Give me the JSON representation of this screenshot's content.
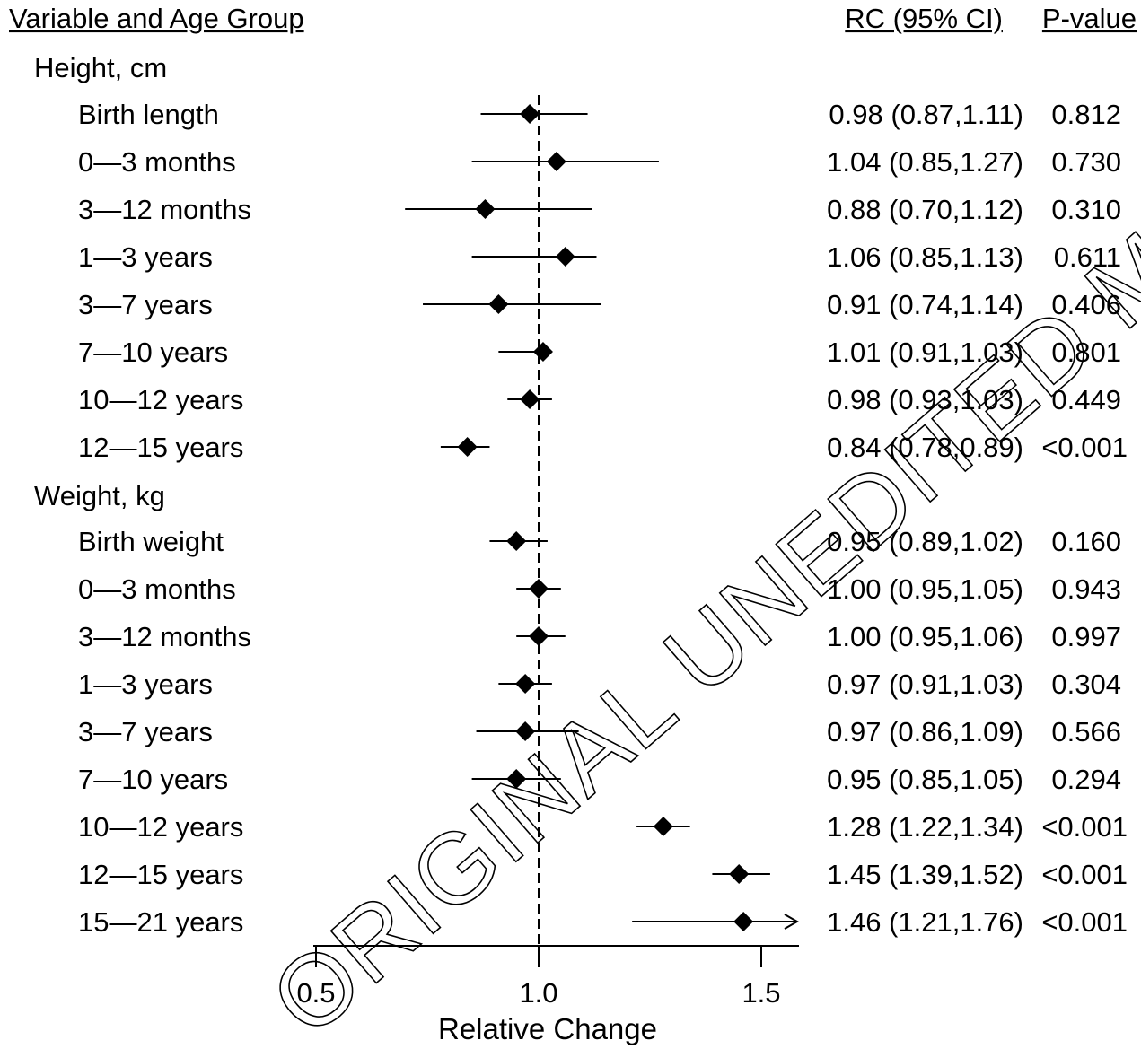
{
  "chart_data": {
    "type": "forest",
    "headers": {
      "variable": "Variable and Age Group",
      "estimate": "RC (95% CI)",
      "pvalue": "P-value"
    },
    "xlabel": "Relative Change",
    "xlim": [
      0.5,
      1.5
    ],
    "xticks": [
      "0.5",
      "1.0",
      "1.5"
    ],
    "reference_line": 1.0,
    "groups": [
      {
        "name": "Height, cm",
        "rows": [
          {
            "label": "Birth length",
            "rc": 0.98,
            "lo": 0.87,
            "hi": 1.11,
            "est_text": "0.98 (0.87,1.11)",
            "p": "0.812"
          },
          {
            "label": "0—3 months",
            "rc": 1.04,
            "lo": 0.85,
            "hi": 1.27,
            "est_text": "1.04 (0.85,1.27)",
            "p": "0.730"
          },
          {
            "label": "3—12 months",
            "rc": 0.88,
            "lo": 0.7,
            "hi": 1.12,
            "est_text": "0.88 (0.70,1.12)",
            "p": "0.310"
          },
          {
            "label": "1—3 years",
            "rc": 1.06,
            "lo": 0.85,
            "hi": 1.13,
            "est_text": "1.06 (0.85,1.13)",
            "p": "0.611"
          },
          {
            "label": "3—7 years",
            "rc": 0.91,
            "lo": 0.74,
            "hi": 1.14,
            "est_text": "0.91 (0.74,1.14)",
            "p": "0.406"
          },
          {
            "label": "7—10 years",
            "rc": 1.01,
            "lo": 0.91,
            "hi": 1.03,
            "est_text": "1.01 (0.91,1.03)",
            "p": "0.801"
          },
          {
            "label": "10—12 years",
            "rc": 0.98,
            "lo": 0.93,
            "hi": 1.03,
            "est_text": "0.98 (0.93,1.03)",
            "p": "0.449"
          },
          {
            "label": "12—15 years",
            "rc": 0.84,
            "lo": 0.78,
            "hi": 0.89,
            "est_text": "0.84 (0.78,0.89)",
            "p": "<0.001"
          }
        ]
      },
      {
        "name": "Weight, kg",
        "rows": [
          {
            "label": "Birth weight",
            "rc": 0.95,
            "lo": 0.89,
            "hi": 1.02,
            "est_text": "0.95 (0.89,1.02)",
            "p": "0.160"
          },
          {
            "label": "0—3 months",
            "rc": 1.0,
            "lo": 0.95,
            "hi": 1.05,
            "est_text": "1.00 (0.95,1.05)",
            "p": "0.943"
          },
          {
            "label": "3—12 months",
            "rc": 1.0,
            "lo": 0.95,
            "hi": 1.06,
            "est_text": "1.00 (0.95,1.06)",
            "p": "0.997"
          },
          {
            "label": "1—3 years",
            "rc": 0.97,
            "lo": 0.91,
            "hi": 1.03,
            "est_text": "0.97 (0.91,1.03)",
            "p": "0.304"
          },
          {
            "label": "3—7 years",
            "rc": 0.97,
            "lo": 0.86,
            "hi": 1.09,
            "est_text": "0.97 (0.86,1.09)",
            "p": "0.566"
          },
          {
            "label": "7—10 years",
            "rc": 0.95,
            "lo": 0.85,
            "hi": 1.05,
            "est_text": "0.95 (0.85,1.05)",
            "p": "0.294"
          },
          {
            "label": "10—12 years",
            "rc": 1.28,
            "lo": 1.22,
            "hi": 1.34,
            "est_text": "1.28 (1.22,1.34)",
            "p": "<0.001"
          },
          {
            "label": "12—15 years",
            "rc": 1.45,
            "lo": 1.39,
            "hi": 1.52,
            "est_text": "1.45 (1.39,1.52)",
            "p": "<0.001"
          },
          {
            "label": "15—21 years",
            "rc": 1.46,
            "lo": 1.21,
            "hi": 1.76,
            "est_text": "1.46 (1.21,1.76)",
            "p": "<0.001"
          }
        ]
      }
    ],
    "watermark": "ORIGINAL UNEDITED MANU"
  }
}
